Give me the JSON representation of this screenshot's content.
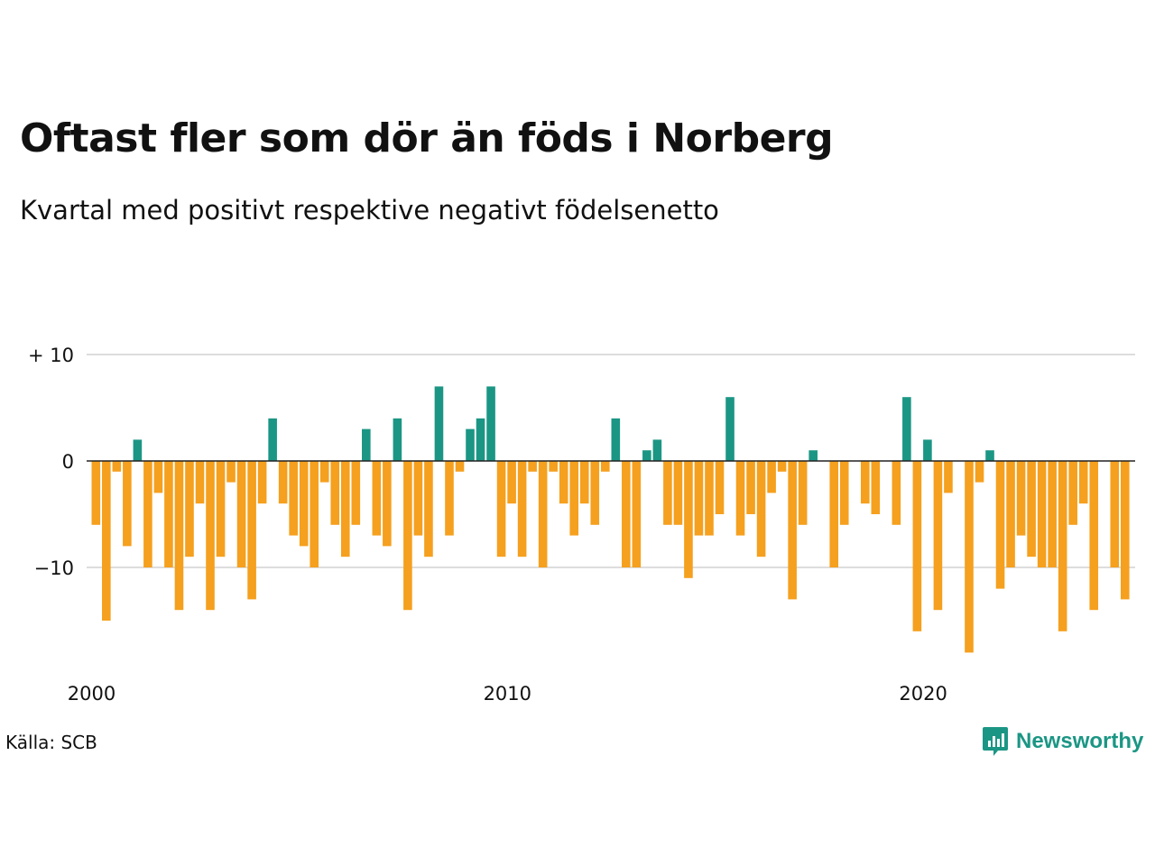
{
  "title": "Oftast fler som dör än föds i Norberg",
  "subtitle": "Kvartal med positivt respektive negativt födelsenetto",
  "source": "Källa: SCB",
  "brand": {
    "name": "Newsworthy",
    "icon": "newsworthy-logo-icon"
  },
  "colors": {
    "positive": "#1b9684",
    "negative": "#f5a01e",
    "grid": "#dddddd",
    "zero_line": "#222222"
  },
  "chart_data": {
    "type": "bar",
    "x_start": "2000Q1",
    "x_ticks": [
      "2000",
      "2010",
      "2020"
    ],
    "y_ticks": [
      "+ 10",
      "0",
      "−10"
    ],
    "y_tick_values": [
      10,
      0,
      -10
    ],
    "ylim": [
      -20,
      11
    ],
    "grid": true,
    "values": [
      -6,
      -15,
      -1,
      -8,
      2,
      -10,
      -3,
      -10,
      -14,
      -9,
      -4,
      -14,
      -9,
      -2,
      -10,
      -13,
      -4,
      4,
      -4,
      -7,
      -8,
      -10,
      -2,
      -6,
      -9,
      -6,
      3,
      -7,
      -8,
      4,
      -14,
      -7,
      -9,
      7,
      -7,
      -1,
      3,
      4,
      7,
      -9,
      -4,
      -9,
      -1,
      -10,
      -1,
      -4,
      -7,
      -4,
      -6,
      -1,
      4,
      -10,
      -10,
      1,
      2,
      -6,
      -6,
      -11,
      -7,
      -7,
      -5,
      6,
      -7,
      -5,
      -9,
      -3,
      -1,
      -13,
      -6,
      1,
      0,
      -10,
      -6,
      0,
      -4,
      -5,
      0,
      -6,
      6,
      -16,
      2,
      -14,
      -3,
      0,
      -18,
      -2,
      1,
      -12,
      -10,
      -7,
      -9,
      -10,
      -10,
      -16,
      -6,
      -4,
      -14,
      0,
      -10,
      -13
    ]
  }
}
